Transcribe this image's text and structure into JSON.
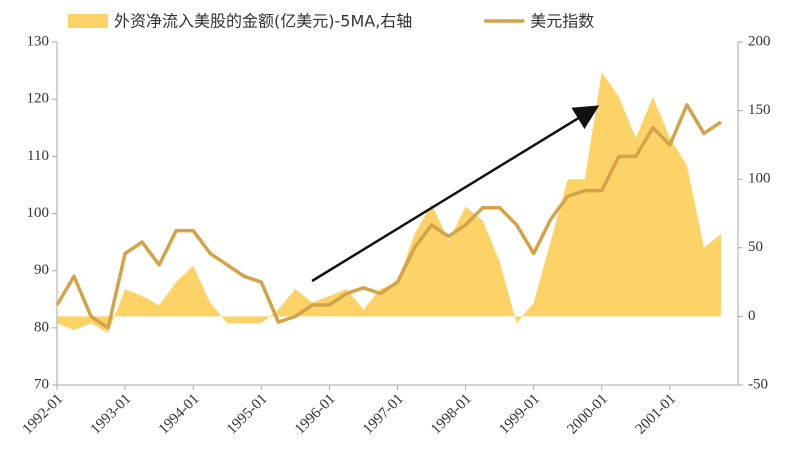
{
  "chart_data": {
    "type": "area-line",
    "categories": [
      "1992-01",
      null,
      null,
      null,
      "1993-01",
      null,
      null,
      null,
      "1994-01",
      null,
      null,
      null,
      "1995-01",
      null,
      null,
      null,
      "1996-01",
      null,
      null,
      null,
      "1997-01",
      null,
      null,
      null,
      "1998-01",
      null,
      null,
      null,
      "1999-01",
      null,
      null,
      null,
      "2000-01",
      null,
      null,
      null,
      "2001-01",
      null,
      null,
      null
    ],
    "series": [
      {
        "name": "外资净流入美股的金额(亿美元)-5MA,右轴",
        "color": "#fdd267",
        "axis": "y2",
        "values": [
          -5,
          -10,
          -5,
          -12,
          20,
          15,
          8,
          25,
          37,
          10,
          -5,
          -5,
          -5,
          5,
          20,
          10,
          15,
          20,
          5,
          20,
          25,
          60,
          82,
          55,
          80,
          70,
          40,
          -5,
          10,
          55,
          100,
          100,
          178,
          160,
          130,
          160,
          130,
          110,
          50,
          60
        ]
      },
      {
        "name": "美元指数",
        "color": "#d4a347",
        "values": [
          84,
          89,
          82,
          80,
          93,
          95,
          91,
          97,
          97,
          93,
          91,
          89,
          88,
          81,
          82,
          84,
          84,
          86,
          87,
          86,
          88,
          94,
          98,
          96,
          98,
          101,
          101,
          98,
          93,
          99,
          103,
          104,
          104,
          110,
          110,
          115,
          112,
          119,
          114,
          116
        ]
      }
    ],
    "ylim": [
      70,
      130
    ],
    "yticks": [
      70,
      80,
      90,
      100,
      110,
      120,
      130
    ],
    "y2lim": [
      -50,
      200
    ],
    "y2ticks": [
      -50,
      0,
      50,
      100,
      150,
      200
    ],
    "legend": "top"
  }
}
